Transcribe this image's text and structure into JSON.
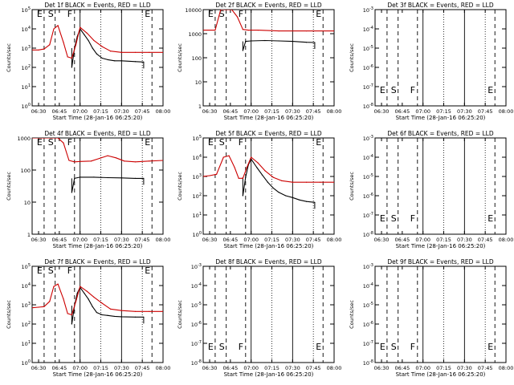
{
  "colors": {
    "events": "#000000",
    "lld": "#cc0000",
    "axes": "#000000"
  },
  "common": {
    "xlabel": "Start Time (28-Jan-16 06:25:20)",
    "ylabel": "Counts/sec",
    "xticks": [
      "06:30",
      "06:45",
      "07:00",
      "07:15",
      "07:30",
      "07:45",
      "08:00"
    ],
    "marker_labels": [
      "E",
      "S",
      "F",
      "E"
    ]
  },
  "chart_data": [
    {
      "id": "det1f",
      "title": "Det 1f BLACK = Events, RED = LLD",
      "type": "line",
      "yscale": "log",
      "xlim": [
        "06:25:20",
        "08:00"
      ],
      "yticks": [
        "10^0",
        "10^1",
        "10^2",
        "10^3",
        "10^4",
        "10^5"
      ],
      "ylim_exp": [
        0,
        5
      ],
      "series": [
        {
          "role": "events",
          "x": [
            "06:54",
            "06:56",
            "06:58",
            "07:00",
            "07:03",
            "07:06",
            "07:09",
            "07:12",
            "07:16",
            "07:20",
            "07:25",
            "07:30",
            "07:40",
            "07:46"
          ],
          "y": [
            100,
            1000,
            4000,
            10000,
            5000,
            2500,
            1000,
            500,
            300,
            250,
            220,
            220,
            200,
            190
          ]
        },
        {
          "role": "lld",
          "x": [
            "06:25",
            "06:30",
            "06:34",
            "06:38",
            "06:41",
            "06:44",
            "06:48",
            "06:51",
            "06:54",
            "06:57",
            "07:00",
            "07:05",
            "07:10",
            "07:16",
            "07:22",
            "07:30",
            "07:40",
            "07:50",
            "08:00"
          ],
          "y": [
            800,
            800,
            900,
            1500,
            10000,
            15000,
            2000,
            350,
            300,
            1500,
            12000,
            6000,
            2500,
            1200,
            700,
            600,
            600,
            600,
            600
          ]
        }
      ]
    },
    {
      "id": "det2f",
      "title": "Det 2f BLACK = Events, RED = LLD",
      "type": "line",
      "yscale": "log",
      "xlim": [
        "06:25:20",
        "08:00"
      ],
      "yticks": [
        "1",
        "10",
        "100",
        "1000",
        "10000"
      ],
      "ylim_exp": [
        0,
        4
      ],
      "series": [
        {
          "role": "events",
          "x": [
            "06:54",
            "06:56",
            "07:00",
            "07:10",
            "07:20",
            "07:30",
            "07:40",
            "07:46"
          ],
          "y": [
            200,
            480,
            500,
            520,
            500,
            480,
            440,
            430
          ]
        },
        {
          "role": "lld",
          "x": [
            "06:25",
            "06:34",
            "06:38",
            "06:42",
            "06:46",
            "06:50",
            "06:54",
            "06:58",
            "07:05",
            "07:20",
            "07:40",
            "08:00"
          ],
          "y": [
            1400,
            1400,
            10000,
            10000,
            10000,
            5000,
            1500,
            1400,
            1400,
            1300,
            1300,
            1300
          ]
        }
      ]
    },
    {
      "id": "det3f",
      "title": "Det 3f BLACK = Events, RED = LLD",
      "type": "line",
      "yscale": "log",
      "xlim": [
        "06:25:20",
        "08:00"
      ],
      "yticks": [
        "10^-8",
        "10^-7",
        "10^-6",
        "10^-5",
        "10^-4",
        "10^-3"
      ],
      "ylim_exp": [
        -8,
        -3
      ],
      "series": [],
      "show_marker_letters": true
    },
    {
      "id": "det4f",
      "title": "Det 4f BLACK = Events, RED = LLD",
      "type": "line",
      "yscale": "log",
      "xlim": [
        "06:25:20",
        "08:00"
      ],
      "yticks": [
        "1",
        "10",
        "100",
        "1000"
      ],
      "ylim_exp": [
        0,
        3
      ],
      "series": [
        {
          "role": "events",
          "x": [
            "06:54",
            "06:56",
            "07:00",
            "07:10",
            "07:20",
            "07:30",
            "07:40",
            "07:46"
          ],
          "y": [
            20,
            55,
            60,
            60,
            58,
            57,
            55,
            55
          ]
        },
        {
          "role": "lld",
          "x": [
            "06:25",
            "06:34",
            "06:38",
            "06:44",
            "06:48",
            "06:52",
            "06:56",
            "07:00",
            "07:08",
            "07:14",
            "07:20",
            "07:26",
            "07:32",
            "07:40",
            "07:50",
            "08:00"
          ],
          "y": [
            1000,
            1000,
            1000,
            1000,
            700,
            200,
            180,
            185,
            190,
            230,
            280,
            240,
            190,
            180,
            190,
            200
          ]
        }
      ]
    },
    {
      "id": "det5f",
      "title": "Det 5f BLACK = Events, RED = LLD",
      "type": "line",
      "yscale": "log",
      "xlim": [
        "06:25:20",
        "08:00"
      ],
      "yticks": [
        "10^0",
        "10^1",
        "10^2",
        "10^3",
        "10^4",
        "10^5"
      ],
      "ylim_exp": [
        0,
        5
      ],
      "series": [
        {
          "role": "events",
          "x": [
            "06:54",
            "06:56",
            "06:58",
            "07:00",
            "07:04",
            "07:08",
            "07:12",
            "07:16",
            "07:20",
            "07:25",
            "07:30",
            "07:35",
            "07:40",
            "07:46"
          ],
          "y": [
            100,
            900,
            4000,
            8000,
            3000,
            1200,
            500,
            250,
            150,
            100,
            80,
            60,
            50,
            45
          ]
        },
        {
          "role": "lld",
          "x": [
            "06:25",
            "06:30",
            "06:35",
            "06:40",
            "06:44",
            "06:48",
            "06:51",
            "06:54",
            "06:57",
            "07:00",
            "07:05",
            "07:10",
            "07:16",
            "07:22",
            "07:30",
            "07:40",
            "07:50",
            "08:00"
          ],
          "y": [
            1000,
            1100,
            1300,
            10000,
            12000,
            3000,
            800,
            800,
            3000,
            10000,
            5000,
            2000,
            900,
            600,
            500,
            500,
            500,
            500
          ]
        }
      ]
    },
    {
      "id": "det6f",
      "title": "Det 6f BLACK = Events, RED = LLD",
      "type": "line",
      "yscale": "log",
      "xlim": [
        "06:25:20",
        "08:00"
      ],
      "yticks": [
        "10^-8",
        "10^-7",
        "10^-6",
        "10^-5",
        "10^-4",
        "10^-3"
      ],
      "ylim_exp": [
        -8,
        -3
      ],
      "series": [],
      "show_marker_letters": true
    },
    {
      "id": "det7f",
      "title": "Det 7f BLACK = Events, RED = LLD",
      "type": "line",
      "yscale": "log",
      "xlim": [
        "06:25:20",
        "08:00"
      ],
      "yticks": [
        "10^0",
        "10^1",
        "10^2",
        "10^3",
        "10^4",
        "10^5"
      ],
      "ylim_exp": [
        0,
        5
      ],
      "series": [
        {
          "role": "events",
          "x": [
            "06:54",
            "06:56",
            "06:58",
            "07:00",
            "07:03",
            "07:06",
            "07:09",
            "07:12",
            "07:16",
            "07:20",
            "07:25",
            "07:30",
            "07:40",
            "07:46"
          ],
          "y": [
            100,
            900,
            4000,
            8000,
            4000,
            2000,
            800,
            400,
            300,
            280,
            250,
            240,
            230,
            230
          ]
        },
        {
          "role": "lld",
          "x": [
            "06:25",
            "06:30",
            "06:34",
            "06:38",
            "06:41",
            "06:44",
            "06:48",
            "06:51",
            "06:54",
            "06:57",
            "07:00",
            "07:05",
            "07:10",
            "07:16",
            "07:22",
            "07:30",
            "07:40",
            "07:50",
            "08:00"
          ],
          "y": [
            700,
            750,
            800,
            1500,
            9000,
            12000,
            2000,
            350,
            300,
            1500,
            9000,
            5000,
            2500,
            1200,
            600,
            500,
            450,
            450,
            450
          ]
        }
      ]
    },
    {
      "id": "det8f",
      "title": "Det 8f BLACK = Events, RED = LLD",
      "type": "line",
      "yscale": "log",
      "xlim": [
        "06:25:20",
        "08:00"
      ],
      "yticks": [
        "10^-8",
        "10^-7",
        "10^-6",
        "10^-5",
        "10^-4",
        "10^-3"
      ],
      "ylim_exp": [
        -8,
        -3
      ],
      "series": [],
      "show_marker_letters": true
    },
    {
      "id": "det9f",
      "title": "Det 9f BLACK = Events, RED = LLD",
      "type": "line",
      "yscale": "log",
      "xlim": [
        "06:25:20",
        "08:00"
      ],
      "yticks": [
        "10^-8",
        "10^-7",
        "10^-6",
        "10^-5",
        "10^-4",
        "10^-3"
      ],
      "ylim_exp": [
        -8,
        -3
      ],
      "series": [],
      "show_marker_letters": true
    }
  ]
}
